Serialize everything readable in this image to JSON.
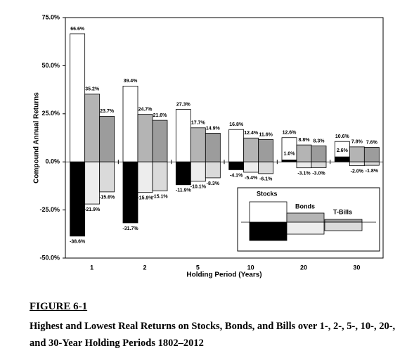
{
  "chart_data": {
    "type": "bar",
    "y_label": "Compound Annual Returns",
    "x_label": "Holding Period (Years)",
    "categories": [
      "1",
      "2",
      "5",
      "10",
      "20",
      "30"
    ],
    "series": [
      {
        "name": "Stocks",
        "high_color": "#ffffff",
        "low_color": "#000000",
        "values": [
          66.6,
          39.4,
          27.3,
          16.8,
          12.6,
          10.6
        ],
        "value_labels": [
          "66.6%",
          "39.4%",
          "27.3%",
          "16.8%",
          "12.6%",
          "10.6%"
        ],
        "low_values": [
          -38.6,
          -31.7,
          -11.9,
          -4.1,
          1.0,
          2.6
        ],
        "low_value_labels": [
          "-38.6%",
          "-31.7%",
          "-11.9%",
          "-4.1%",
          "1.0%",
          "2.6%"
        ]
      },
      {
        "name": "Bonds",
        "high_color": "#b4b4b4",
        "low_color": "#ededed",
        "values": [
          35.2,
          24.7,
          17.7,
          12.4,
          8.8,
          7.8
        ],
        "value_labels": [
          "35.2%",
          "24.7%",
          "17.7%",
          "12.4%",
          "8.8%",
          "7.8%"
        ],
        "low_values": [
          -21.9,
          -15.9,
          -10.1,
          -5.4,
          -3.1,
          -2.0
        ],
        "low_value_labels": [
          "-21.9%",
          "-15.9%",
          "-10.1%",
          "-5.4%",
          "-3.1%",
          "-2.0%"
        ]
      },
      {
        "name": "T-Bills",
        "high_color": "#9c9c9c",
        "low_color": "#dadada",
        "values": [
          23.7,
          21.6,
          14.9,
          11.6,
          8.3,
          7.6
        ],
        "value_labels": [
          "23.7%",
          "21.6%",
          "14.9%",
          "11.6%",
          "8.3%",
          "7.6%"
        ],
        "low_values": [
          -15.6,
          -15.1,
          -8.3,
          -6.1,
          -3.0,
          -1.8
        ],
        "low_value_labels": [
          "-15.6%",
          "-15.1%",
          "-8.3%",
          "-6.1%",
          "-3.0%",
          "-1.8%"
        ]
      }
    ],
    "ylim": [
      -50,
      75
    ],
    "yticks": [
      {
        "value": -50,
        "label": "-50.0%"
      },
      {
        "value": -25,
        "label": "-25.0%"
      },
      {
        "value": 0,
        "label": "0.0%"
      },
      {
        "value": 25,
        "label": "25.0%"
      },
      {
        "value": 50,
        "label": "50.0%"
      },
      {
        "value": 75,
        "label": "75.0%"
      }
    ],
    "legend": "lower right"
  },
  "figure": {
    "label": "FIGURE 6-1",
    "caption": "Highest and Lowest Real Returns on Stocks, Bonds, and Bills over 1-, 2-, 5-, 10-, 20-, and 30-Year Holding Periods 1802–2012"
  }
}
